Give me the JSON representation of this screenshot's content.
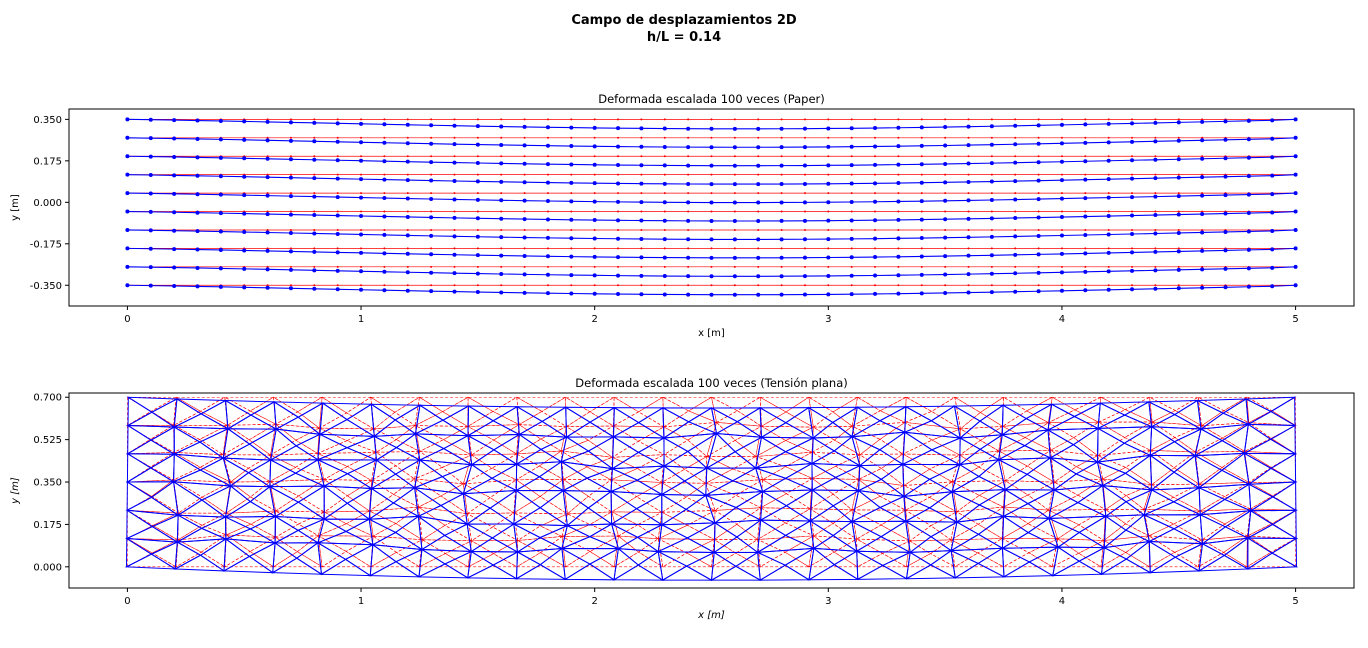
{
  "figure": {
    "suptitle_line1": "Campo de desplazamientos 2D",
    "suptitle_line2": "h/L = 0.14"
  },
  "chart_data": [
    {
      "type": "scatter",
      "title": "Deformada escalada 100 veces (Paper)",
      "xlabel": "x [m]",
      "ylabel": "y [m]",
      "xlim": [
        -0.25,
        5.25
      ],
      "ylim": [
        -0.4375,
        0.3937
      ],
      "xticks": [
        "0",
        "1",
        "2",
        "3",
        "4",
        "5"
      ],
      "xtick_values": [
        0,
        1,
        2,
        3,
        4,
        5
      ],
      "yticks": [
        "0.350",
        "0.175",
        "0.000",
        "-0.175",
        "-0.350"
      ],
      "ytick_values": [
        0.35,
        0.175,
        0.0,
        -0.175,
        -0.35
      ],
      "grid": false,
      "legend": "none",
      "x": [
        0.0,
        0.1,
        0.2,
        0.3,
        0.4,
        0.5,
        0.6,
        0.7,
        0.8,
        0.9,
        1.0,
        1.1,
        1.2,
        1.3,
        1.4,
        1.5,
        1.6,
        1.7,
        1.8,
        1.9,
        2.0,
        2.1,
        2.2,
        2.3,
        2.4,
        2.5,
        2.6,
        2.7,
        2.8,
        2.9,
        3.0,
        3.1,
        3.2,
        3.3,
        3.4,
        3.5,
        3.6,
        3.7,
        3.8,
        3.9,
        4.0,
        4.1,
        4.2,
        4.3,
        4.4,
        4.5,
        4.6,
        4.7,
        4.8,
        4.9,
        5.0
      ],
      "series": [
        {
          "y_undeformed": 0.35,
          "y_deformed": [
            0.35,
            0.3485,
            0.3469,
            0.3451,
            0.3433,
            0.3413,
            0.3393,
            0.3372,
            0.3352,
            0.3331,
            0.3311,
            0.3291,
            0.3271,
            0.3251,
            0.3232,
            0.3214,
            0.3197,
            0.3181,
            0.3166,
            0.3152,
            0.314,
            0.3129,
            0.312,
            0.3112,
            0.3106,
            0.3102,
            0.3101,
            0.3101,
            0.3104,
            0.3108,
            0.3115,
            0.3124,
            0.3134,
            0.3146,
            0.316,
            0.3175,
            0.3192,
            0.3209,
            0.3228,
            0.3247,
            0.3267,
            0.3288,
            0.3309,
            0.333,
            0.3351,
            0.3373,
            0.3394,
            0.3415,
            0.3437,
            0.3458,
            0.35
          ]
        },
        {
          "y_undeformed": 0.2722,
          "y_deformed": [
            0.2722,
            0.2707,
            0.2691,
            0.2673,
            0.2655,
            0.2635,
            0.2615,
            0.2594,
            0.2574,
            0.2553,
            0.2533,
            0.2513,
            0.2493,
            0.2473,
            0.2454,
            0.2436,
            0.2419,
            0.2403,
            0.2388,
            0.2374,
            0.2362,
            0.2351,
            0.2342,
            0.2334,
            0.2328,
            0.2324,
            0.2323,
            0.2323,
            0.2326,
            0.233,
            0.2337,
            0.2346,
            0.2356,
            0.2368,
            0.2382,
            0.2397,
            0.2414,
            0.2431,
            0.245,
            0.2469,
            0.2489,
            0.251,
            0.2531,
            0.2552,
            0.2573,
            0.2595,
            0.2616,
            0.2637,
            0.2659,
            0.268,
            0.2722
          ]
        },
        {
          "y_undeformed": 0.1944,
          "y_deformed": [
            0.1944,
            0.1929,
            0.1913,
            0.1895,
            0.1877,
            0.1857,
            0.1837,
            0.1816,
            0.1796,
            0.1775,
            0.1755,
            0.1735,
            0.1715,
            0.1695,
            0.1676,
            0.1658,
            0.1641,
            0.1625,
            0.161,
            0.1596,
            0.1584,
            0.1573,
            0.1564,
            0.1556,
            0.155,
            0.1546,
            0.1545,
            0.1545,
            0.1548,
            0.1552,
            0.1559,
            0.1568,
            0.1578,
            0.159,
            0.1604,
            0.1619,
            0.1636,
            0.1653,
            0.1672,
            0.1691,
            0.1711,
            0.1732,
            0.1753,
            0.1774,
            0.1795,
            0.1817,
            0.1838,
            0.1859,
            0.1881,
            0.1902,
            0.1944
          ]
        },
        {
          "y_undeformed": 0.1167,
          "y_deformed": [
            0.1167,
            0.1152,
            0.1136,
            0.1118,
            0.11,
            0.108,
            0.106,
            0.1039,
            0.1019,
            0.0998,
            0.0978,
            0.0958,
            0.0938,
            0.0918,
            0.0899,
            0.0881,
            0.0864,
            0.0848,
            0.0833,
            0.0819,
            0.0807,
            0.0796,
            0.0787,
            0.0779,
            0.0773,
            0.0769,
            0.0768,
            0.0768,
            0.0771,
            0.0775,
            0.0782,
            0.0791,
            0.0801,
            0.0813,
            0.0827,
            0.0842,
            0.0859,
            0.0876,
            0.0895,
            0.0914,
            0.0934,
            0.0955,
            0.0976,
            0.0997,
            0.1018,
            0.104,
            0.1061,
            0.1082,
            0.1104,
            0.1125,
            0.1167
          ]
        },
        {
          "y_undeformed": 0.0389,
          "y_deformed": [
            0.0389,
            0.0374,
            0.0358,
            0.034,
            0.0322,
            0.0302,
            0.0282,
            0.0261,
            0.0241,
            0.022,
            0.02,
            0.018,
            0.016,
            0.014,
            0.0121,
            0.0103,
            0.0086,
            0.007,
            0.0055,
            0.0041,
            0.0029,
            0.0018,
            0.0009,
            0.0001,
            -0.0005,
            -0.0009,
            -0.001,
            -0.001,
            -0.0007,
            -0.0003,
            0.0004,
            0.0013,
            0.0023,
            0.0035,
            0.0049,
            0.0064,
            0.0081,
            0.0098,
            0.0117,
            0.0136,
            0.0156,
            0.0177,
            0.0198,
            0.0219,
            0.024,
            0.0262,
            0.0283,
            0.0304,
            0.0326,
            0.0347,
            0.0389
          ]
        },
        {
          "y_undeformed": -0.0389,
          "y_deformed": [
            -0.0389,
            -0.0404,
            -0.042,
            -0.0438,
            -0.0456,
            -0.0476,
            -0.0496,
            -0.0517,
            -0.0537,
            -0.0558,
            -0.0578,
            -0.0598,
            -0.0618,
            -0.0638,
            -0.0657,
            -0.0675,
            -0.0692,
            -0.0708,
            -0.0723,
            -0.0737,
            -0.0749,
            -0.076,
            -0.0769,
            -0.0777,
            -0.0783,
            -0.0787,
            -0.0788,
            -0.0788,
            -0.0785,
            -0.0781,
            -0.0774,
            -0.0765,
            -0.0755,
            -0.0743,
            -0.0729,
            -0.0714,
            -0.0697,
            -0.068,
            -0.0661,
            -0.0642,
            -0.0622,
            -0.0601,
            -0.058,
            -0.0559,
            -0.0538,
            -0.0516,
            -0.0495,
            -0.0474,
            -0.0452,
            -0.0431,
            -0.0389
          ]
        },
        {
          "y_undeformed": -0.1167,
          "y_deformed": [
            -0.1167,
            -0.1182,
            -0.1198,
            -0.1216,
            -0.1234,
            -0.1254,
            -0.1274,
            -0.1295,
            -0.1315,
            -0.1336,
            -0.1356,
            -0.1376,
            -0.1396,
            -0.1416,
            -0.1435,
            -0.1453,
            -0.147,
            -0.1486,
            -0.1501,
            -0.1515,
            -0.1527,
            -0.1538,
            -0.1547,
            -0.1555,
            -0.1561,
            -0.1565,
            -0.1566,
            -0.1566,
            -0.1563,
            -0.1559,
            -0.1552,
            -0.1543,
            -0.1533,
            -0.1521,
            -0.1507,
            -0.1492,
            -0.1475,
            -0.1458,
            -0.1439,
            -0.142,
            -0.14,
            -0.1379,
            -0.1358,
            -0.1337,
            -0.1316,
            -0.1294,
            -0.1273,
            -0.1252,
            -0.123,
            -0.1209,
            -0.1167
          ]
        },
        {
          "y_undeformed": -0.1944,
          "y_deformed": [
            -0.1944,
            -0.1959,
            -0.1975,
            -0.1993,
            -0.2011,
            -0.2031,
            -0.2051,
            -0.2072,
            -0.2092,
            -0.2113,
            -0.2133,
            -0.2153,
            -0.2173,
            -0.2193,
            -0.2212,
            -0.223,
            -0.2247,
            -0.2263,
            -0.2278,
            -0.2292,
            -0.2304,
            -0.2315,
            -0.2324,
            -0.2332,
            -0.2338,
            -0.2342,
            -0.2343,
            -0.2343,
            -0.234,
            -0.2336,
            -0.2329,
            -0.232,
            -0.231,
            -0.2298,
            -0.2284,
            -0.2269,
            -0.2252,
            -0.2235,
            -0.2216,
            -0.2197,
            -0.2177,
            -0.2156,
            -0.2135,
            -0.2114,
            -0.2093,
            -0.2071,
            -0.205,
            -0.2029,
            -0.2007,
            -0.1986,
            -0.1944
          ]
        },
        {
          "y_undeformed": -0.2722,
          "y_deformed": [
            -0.2722,
            -0.2737,
            -0.2753,
            -0.2771,
            -0.2789,
            -0.2809,
            -0.2829,
            -0.285,
            -0.287,
            -0.2891,
            -0.2911,
            -0.2931,
            -0.2951,
            -0.2971,
            -0.299,
            -0.3008,
            -0.3025,
            -0.3041,
            -0.3056,
            -0.307,
            -0.3082,
            -0.3093,
            -0.3102,
            -0.311,
            -0.3116,
            -0.312,
            -0.3121,
            -0.3121,
            -0.3118,
            -0.3114,
            -0.3107,
            -0.3098,
            -0.3088,
            -0.3076,
            -0.3062,
            -0.3047,
            -0.303,
            -0.3013,
            -0.2994,
            -0.2975,
            -0.2955,
            -0.2934,
            -0.2913,
            -0.2892,
            -0.2871,
            -0.2849,
            -0.2828,
            -0.2807,
            -0.2785,
            -0.2764,
            -0.2722
          ]
        },
        {
          "y_undeformed": -0.35,
          "y_deformed": [
            -0.35,
            -0.3515,
            -0.3531,
            -0.3549,
            -0.3567,
            -0.3587,
            -0.3607,
            -0.3628,
            -0.3648,
            -0.3669,
            -0.3689,
            -0.3709,
            -0.3729,
            -0.3749,
            -0.3768,
            -0.3786,
            -0.3803,
            -0.3819,
            -0.3834,
            -0.3848,
            -0.386,
            -0.3871,
            -0.388,
            -0.3888,
            -0.3894,
            -0.3898,
            -0.3899,
            -0.3899,
            -0.3896,
            -0.3892,
            -0.3885,
            -0.3876,
            -0.3866,
            -0.3854,
            -0.384,
            -0.3825,
            -0.3808,
            -0.3791,
            -0.3772,
            -0.3753,
            -0.3733,
            -0.3712,
            -0.3691,
            -0.367,
            -0.3649,
            -0.3627,
            -0.3606,
            -0.3585,
            -0.3563,
            -0.3542,
            -0.35
          ]
        }
      ],
      "colors": {
        "undeformed": "#ff0000",
        "deformed": "#0000ff"
      }
    },
    {
      "type": "scatter",
      "title": "Deformada escalada 100 veces (Tensión plana)",
      "xlabel": "x [m]",
      "ylabel": "y [m]",
      "xlim": [
        -0.25,
        5.25
      ],
      "ylim": [
        -0.0875,
        0.7175
      ],
      "xticks": [
        "0",
        "1",
        "2",
        "3",
        "4",
        "5"
      ],
      "xtick_values": [
        0,
        1,
        2,
        3,
        4,
        5
      ],
      "yticks": [
        "0.700",
        "0.525",
        "0.350",
        "0.175",
        "0.000"
      ],
      "ytick_values": [
        0.7,
        0.525,
        0.35,
        0.175,
        0.0
      ],
      "grid": false,
      "legend": "none",
      "mesh": {
        "element": "triangular",
        "L": 5.0,
        "h": 0.7,
        "columns": 24,
        "rows": 6,
        "max_deflection": 0.06
      },
      "colors": {
        "undeformed": "#ff0000",
        "deformed": "#0000ff"
      }
    }
  ]
}
